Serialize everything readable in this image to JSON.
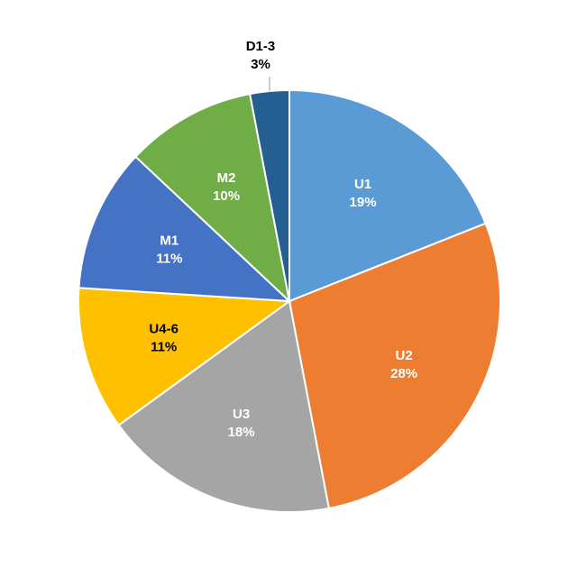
{
  "chart_data": {
    "type": "pie",
    "title": "",
    "slices": [
      {
        "label": "U1",
        "percent_label": "19%",
        "value": 19,
        "color": "#5B9BD5",
        "text_color": "#ffffff"
      },
      {
        "label": "U2",
        "percent_label": "28%",
        "value": 28,
        "color": "#ED7D31",
        "text_color": "#ffffff"
      },
      {
        "label": "U3",
        "percent_label": "18%",
        "value": 18,
        "color": "#A5A5A5",
        "text_color": "#ffffff"
      },
      {
        "label": "U4-6",
        "percent_label": "11%",
        "value": 11,
        "color": "#FFC000",
        "text_color": "#000000"
      },
      {
        "label": "M1",
        "percent_label": "11%",
        "value": 11,
        "color": "#4472C4",
        "text_color": "#ffffff"
      },
      {
        "label": "M2",
        "percent_label": "10%",
        "value": 10,
        "color": "#70AD47",
        "text_color": "#ffffff"
      },
      {
        "label": "D1-3",
        "percent_label": "3%",
        "value": 3,
        "color": "#255E91",
        "text_color": "#000000",
        "label_outside": true
      }
    ],
    "start_angle_deg": 0,
    "direction": "clockwise",
    "legend": "none"
  }
}
